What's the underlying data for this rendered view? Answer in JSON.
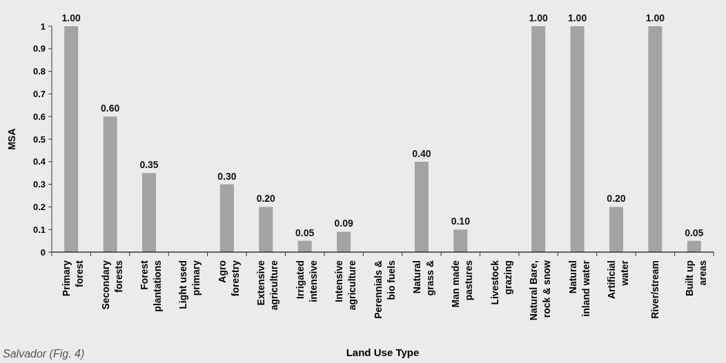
{
  "chart_data": {
    "type": "bar",
    "xlabel": "Land Use Type",
    "ylabel": "MSA",
    "categories": [
      "Primary\nforest",
      "Secondary\nforests",
      "Forest\nplantations",
      "Light used\nprimary",
      "Agro\nforestry",
      "Extensive\nagriculture",
      "Irrigated\nintensive",
      "Intensive\nagriculture",
      "Perennials &\nbio fuels",
      "Natural\ngrass &",
      "Man made\npastures",
      "Livestock\ngrazing",
      "Natural Bare,\nrock & snow",
      "Natural\ninland water",
      "Artificial\nwater",
      "River/stream",
      "Built up\nareas"
    ],
    "values": [
      1,
      0.6,
      0.35,
      null,
      0.3,
      0.2,
      0.05,
      0.09,
      null,
      0.4,
      0.1,
      null,
      1,
      1,
      0.2,
      1,
      0.05
    ],
    "value_labels": [
      "1.00",
      "0.60",
      "0.35",
      null,
      "0.30",
      "0.20",
      "0.05",
      "0.09",
      null,
      "0.40",
      "0.10",
      null,
      "1.00",
      "1.00",
      "0.20",
      "1.00",
      "0.05"
    ],
    "color": "#a3a3a3",
    "ylim": [
      0,
      1
    ],
    "yticks": [
      0,
      0.1,
      0.2,
      0.3,
      0.4,
      0.5,
      0.6,
      0.7,
      0.8,
      0.9,
      1
    ],
    "grid": false,
    "annotations": [
      "Salvador (Fig. 4)"
    ]
  }
}
